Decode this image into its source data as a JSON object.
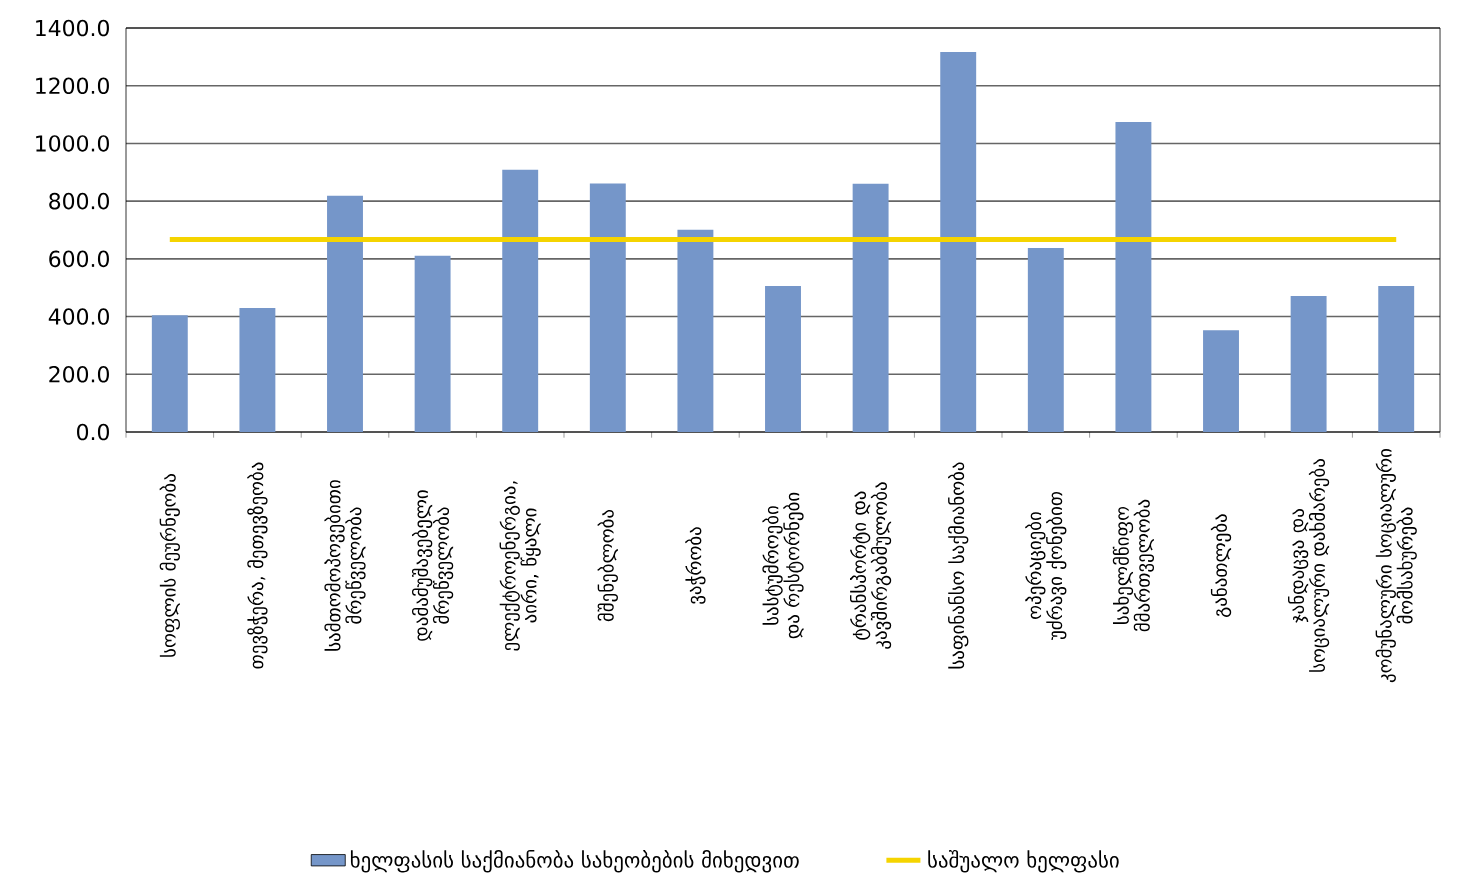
{
  "chart_data": {
    "type": "bar",
    "categories": [
      "სოფლის მეურნეობა",
      "თევზჭერა, მეთევზეობა",
      "სამთომოპოვებითი მრეწველობა",
      "დამამუშავებელი მრეწველობა",
      "ელექტროენერგია, აირი, წყალი",
      "მშენებლობა",
      "ვაჭრობა",
      "სასტუმროები და რესტორნები",
      "ტრანსპორტი და კავშირგაბმულობა",
      "საფინანსო საქმიანობა",
      "ოპერაციები უძრავი ქონებით",
      "სახელმწიფო მმართველობა",
      "განათლება",
      "ჯანდაცვა და სოციალური დახმარება",
      "კომუნალური სოციალური მომსახურება"
    ],
    "series": [
      {
        "name": "ხელფასის საქმიანობა სახეობების მიხედვით",
        "color": "#7596c9",
        "values": [
          405,
          430,
          819,
          611,
          909,
          861,
          701,
          506,
          860,
          1317,
          638,
          1074,
          353,
          471,
          506
        ]
      },
      {
        "name": "საშუალო ხელფასი",
        "type": "line",
        "color": "#f5d400",
        "values": [
          667,
          667,
          667,
          667,
          667,
          667,
          667,
          667,
          667,
          667,
          667,
          667,
          667,
          667,
          667
        ]
      }
    ],
    "ylim": [
      0,
      1400
    ],
    "yticks": [
      {
        "value": 0,
        "label": "0.0"
      },
      {
        "value": 200,
        "label": "200.0"
      },
      {
        "value": 400,
        "label": "400.0"
      },
      {
        "value": 600,
        "label": "600.0"
      },
      {
        "value": 800,
        "label": "800.0"
      },
      {
        "value": 1000,
        "label": "1000.0"
      },
      {
        "value": 1200,
        "label": "1200.0"
      },
      {
        "value": 1400,
        "label": "1400.0"
      }
    ],
    "grid": "y",
    "legend": "bottom"
  }
}
